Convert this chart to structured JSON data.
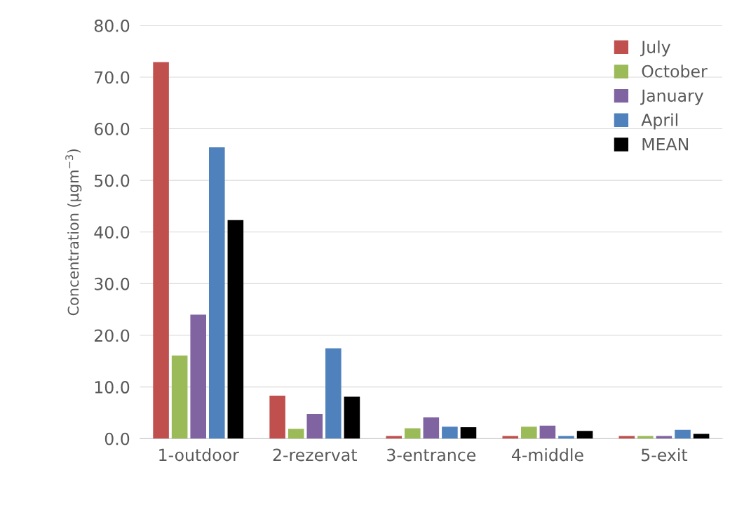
{
  "chart_data": {
    "type": "bar",
    "ylabel": "Concentration (µgm$^{−3}$)",
    "categories": [
      "1-outdoor",
      "2-rezervat",
      "3-entrance",
      "4-middle",
      "5-exit"
    ],
    "series": [
      {
        "name": "July",
        "color": "#c0504d",
        "values": [
          72.9,
          8.3,
          0.5,
          0.5,
          0.5
        ]
      },
      {
        "name": "October",
        "color": "#9bbb59",
        "values": [
          16.1,
          1.9,
          2.0,
          2.3,
          0.5
        ]
      },
      {
        "name": "January",
        "color": "#8064a2",
        "values": [
          24.0,
          4.8,
          4.1,
          2.5,
          0.5
        ]
      },
      {
        "name": "April",
        "color": "#4f81bd",
        "values": [
          56.4,
          17.5,
          2.3,
          0.5,
          1.7
        ]
      },
      {
        "name": "MEAN",
        "color": "#000000",
        "values": [
          42.3,
          8.1,
          2.2,
          1.5,
          0.9
        ]
      }
    ],
    "ylim": [
      0,
      80
    ],
    "yticks": [
      {
        "value": 0,
        "label": "0.0"
      },
      {
        "value": 10,
        "label": "10.0"
      },
      {
        "value": 20,
        "label": "20.0"
      },
      {
        "value": 30,
        "label": "30.0"
      },
      {
        "value": 40,
        "label": "40.0"
      },
      {
        "value": 50,
        "label": "50.0"
      },
      {
        "value": 60,
        "label": "60.0"
      },
      {
        "value": 70,
        "label": "70.0"
      },
      {
        "value": 80,
        "label": "80.0"
      }
    ],
    "grid": "y",
    "legend": "top right"
  }
}
